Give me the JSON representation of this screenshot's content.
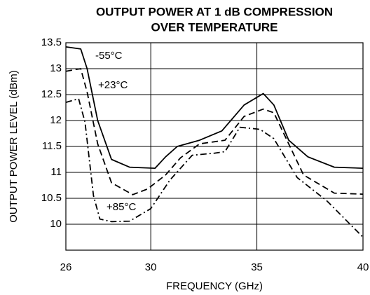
{
  "chart_data": {
    "type": "line",
    "title": [
      "OUTPUT  POWER AT 1 dB COMPRESSION",
      "OVER TEMPERATURE"
    ],
    "xlabel": "FREQUENCY (GHz)",
    "ylabel": "OUTPUT POWER LEVEL (dBm)",
    "xlim": [
      26,
      40
    ],
    "xticks": [
      26,
      30,
      35,
      40
    ],
    "ylim": [
      9.5,
      13.5
    ],
    "yticks": [
      13.5,
      13,
      12.5,
      12,
      11.5,
      11,
      10.5,
      10
    ],
    "grid": true,
    "series": [
      {
        "name": "-55°C",
        "color": "#000000",
        "style": "solid",
        "x": [
          26,
          26.7,
          27.0,
          27.5,
          28.15,
          29.0,
          30.2,
          30.7,
          31.25,
          32.3,
          33.35,
          34.4,
          35.3,
          35.8,
          36.5,
          37.4,
          38.65,
          40
        ],
        "values": [
          13.42,
          13.38,
          13.0,
          12.0,
          11.25,
          11.1,
          11.08,
          11.3,
          11.5,
          11.62,
          11.8,
          12.3,
          12.52,
          12.3,
          11.62,
          11.3,
          11.1,
          11.08
        ]
      },
      {
        "name": "+23°C",
        "color": "#000000",
        "style": "dashed",
        "x": [
          26,
          26.7,
          27.0,
          27.5,
          28.15,
          29.15,
          29.85,
          30.7,
          31.4,
          32.3,
          33.5,
          34.4,
          35.3,
          35.8,
          36.5,
          37.2,
          38.65,
          40
        ],
        "values": [
          12.95,
          13.0,
          12.55,
          11.55,
          10.8,
          10.57,
          10.68,
          10.95,
          11.28,
          11.55,
          11.62,
          12.08,
          12.22,
          12.15,
          11.55,
          10.95,
          10.6,
          10.58
        ]
      },
      {
        "name": "+85°C",
        "color": "#000000",
        "style": "dashdot",
        "x": [
          26,
          26.6,
          26.9,
          27.3,
          27.6,
          28.15,
          29.0,
          30,
          30.9,
          31.95,
          33.0,
          33.5,
          34.2,
          35.15,
          35.8,
          36.9,
          38.3,
          40
        ],
        "values": [
          12.35,
          12.42,
          11.97,
          10.55,
          10.1,
          10.05,
          10.06,
          10.3,
          10.85,
          11.33,
          11.37,
          11.4,
          11.87,
          11.83,
          11.65,
          10.9,
          10.45,
          9.75
        ]
      }
    ]
  }
}
